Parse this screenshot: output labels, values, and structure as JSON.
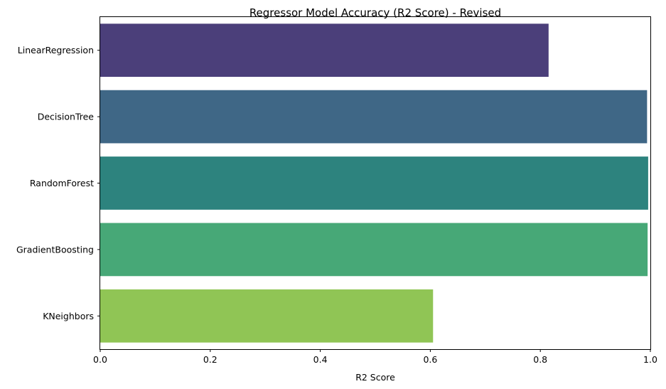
{
  "chart_data": {
    "type": "bar",
    "orientation": "horizontal",
    "title": "Regressor Model Accuracy (R2 Score) - Revised",
    "xlabel": "R2 Score",
    "ylabel": "",
    "xlim": [
      0.0,
      1.0
    ],
    "xticks": [
      "0.0",
      "0.2",
      "0.4",
      "0.6",
      "0.8",
      "1.0"
    ],
    "grid": false,
    "categories": [
      "LinearRegression",
      "DecisionTree",
      "RandomForest",
      "GradientBoosting",
      "KNeighbors"
    ],
    "values": [
      0.815,
      0.994,
      0.996,
      0.995,
      0.605
    ],
    "colors": [
      "#4b3f7a",
      "#3f6786",
      "#2d837e",
      "#47a877",
      "#90c555"
    ]
  }
}
